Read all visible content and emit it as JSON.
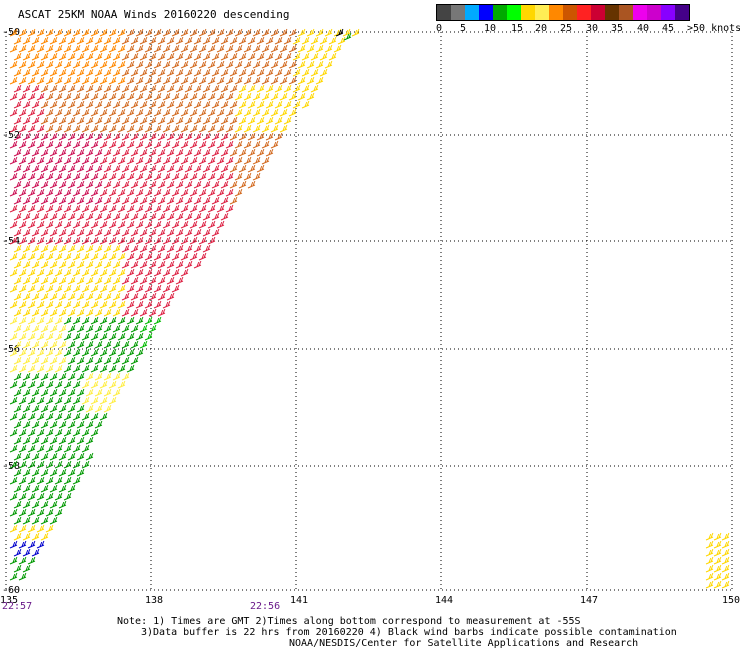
{
  "header": {
    "title": "ASCAT 25KM NOAA Winds 20160220 descending"
  },
  "colorbar": {
    "segments": [
      "#444444",
      "#777777",
      "#00aaff",
      "#0000ff",
      "#00aa00",
      "#00ff00",
      "#ffd700",
      "#ffee55",
      "#ff8800",
      "#cc5500",
      "#ff2222",
      "#cc0033",
      "#663300",
      "#aa5522",
      "#ee00ee",
      "#cc00cc",
      "#8800ff",
      "#440088"
    ],
    "labels": [
      "0",
      "5",
      "10",
      "15",
      "20",
      "25",
      "30",
      "35",
      "40",
      "45",
      ">50 knots"
    ]
  },
  "map": {
    "lat_labels": [
      "-50",
      "-52",
      "-54",
      "-56",
      "-58",
      "-60"
    ],
    "lon_labels": [
      "135",
      "138",
      "141",
      "144",
      "147",
      "150"
    ],
    "time_labels": [
      "22:57",
      "22:56"
    ],
    "colors": {
      "yellow": "#ffd700",
      "light_yellow": "#ffee44",
      "orange": "#ff8800",
      "dark_orange": "#d26a20",
      "red": "#dd2244",
      "magenta_red": "#cc1155",
      "green": "#009900",
      "light_green": "#00bb00",
      "blue": "#0000cc"
    }
  },
  "notes": {
    "line1": "Note: 1) Times are GMT 2)Times along bottom correspond to measurement at -55S",
    "line2": "3)Data buffer is 22 hrs from 20160220 4) Black wind barbs indicate possible contamination",
    "line3": "NOAA/NESDIS/Center for Satellite Applications and Research"
  }
}
